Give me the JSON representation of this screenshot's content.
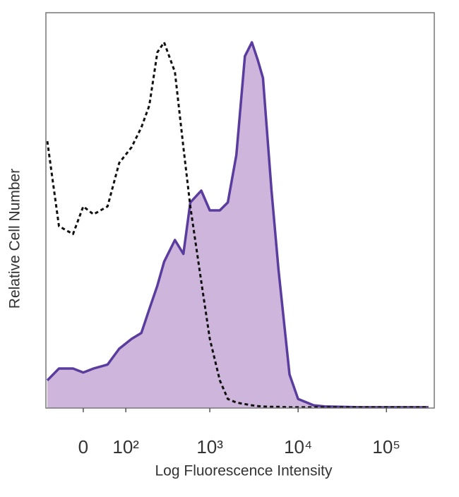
{
  "chart_data": {
    "type": "histogram-overlay",
    "x_label": "Log Fluorescence Intensity",
    "y_label": "Relative Cell Number",
    "x": [
      -80,
      -50,
      -20,
      0,
      20,
      50,
      80,
      120,
      160,
      200,
      250,
      300,
      400,
      500,
      600,
      800,
      1000,
      1300,
      1600,
      2000,
      2500,
      3000,
      3500,
      4000,
      5000,
      6000,
      8000,
      10000,
      15000,
      20000,
      50000,
      100000,
      300000
    ],
    "series": [
      {
        "color": "#5a3c9e",
        "fill": "#cdb5dc",
        "dashed": false,
        "values": [
          7,
          10,
          10,
          9,
          10,
          11,
          15,
          17.5,
          19,
          25,
          31,
          37,
          42.5,
          39,
          52,
          55,
          50,
          50,
          52,
          64,
          89,
          92.5,
          88,
          83.5,
          55,
          35,
          8.5,
          2.3,
          0.7,
          0.4,
          0.2,
          0.2,
          0.2
        ]
      },
      {
        "color": "#111111",
        "dashed": true,
        "values": [
          67.5,
          46,
          44,
          51,
          49,
          51,
          62,
          66,
          71,
          76.5,
          90,
          92.5,
          85,
          66,
          51,
          32,
          17.5,
          7,
          2.3,
          1.4,
          1,
          0.7,
          0.5,
          0.4,
          0.3,
          0.3,
          0.2,
          0.2,
          0.2,
          0.2,
          0.2,
          0.2,
          0.2
        ]
      }
    ],
    "xscale": "biexponential",
    "xlim": [
      -84,
      348000
    ],
    "xticks": [
      0,
      {
        "value": 100,
        "label": "10²"
      },
      {
        "value": 1000,
        "label": "10³"
      },
      {
        "value": 10000,
        "label": "10⁴"
      },
      {
        "value": 100000,
        "label": "10⁵"
      }
    ],
    "ylim": [
      0,
      100
    ]
  }
}
